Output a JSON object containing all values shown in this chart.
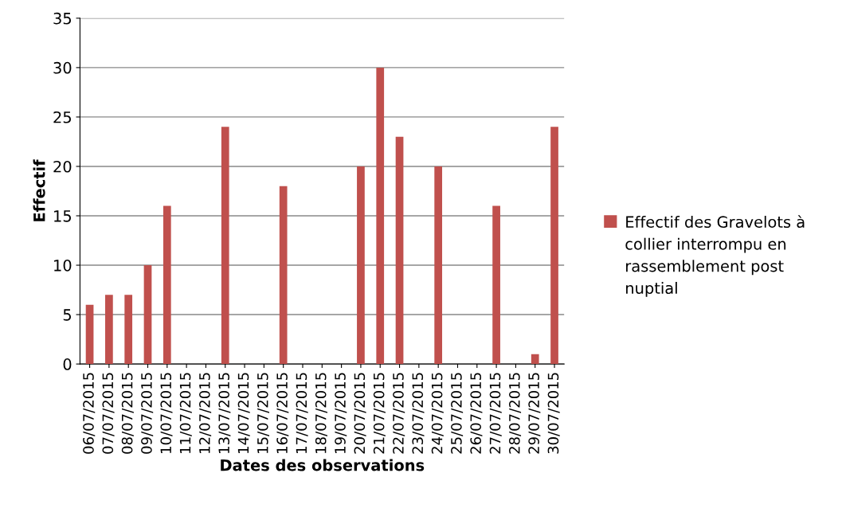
{
  "chart_data": {
    "type": "bar",
    "xlabel": "Dates des observations",
    "ylabel": "Effectif",
    "categories": [
      "06/07/2015",
      "07/07/2015",
      "08/07/2015",
      "09/07/2015",
      "10/07/2015",
      "11/07/2015",
      "12/07/2015",
      "13/07/2015",
      "14/07/2015",
      "15/07/2015",
      "16/07/2015",
      "17/07/2015",
      "18/07/2015",
      "19/07/2015",
      "20/07/2015",
      "21/07/2015",
      "22/07/2015",
      "23/07/2015",
      "24/07/2015",
      "25/07/2015",
      "26/07/2015",
      "27/07/2015",
      "28/07/2015",
      "29/07/2015",
      "30/07/2015"
    ],
    "series": [
      {
        "name": "Effectif des Gravelots à collier interrompu en rassemblement post nuptial",
        "color": "#c0504d",
        "values": [
          6,
          7,
          7,
          10,
          16,
          null,
          null,
          24,
          null,
          null,
          18,
          null,
          null,
          null,
          20,
          30,
          23,
          null,
          20,
          null,
          null,
          16,
          null,
          1,
          24
        ]
      }
    ],
    "ylim": [
      0,
      35
    ],
    "yticks": [
      0,
      5,
      10,
      15,
      20,
      25,
      30,
      35
    ],
    "grid": "y",
    "legend": "right"
  }
}
